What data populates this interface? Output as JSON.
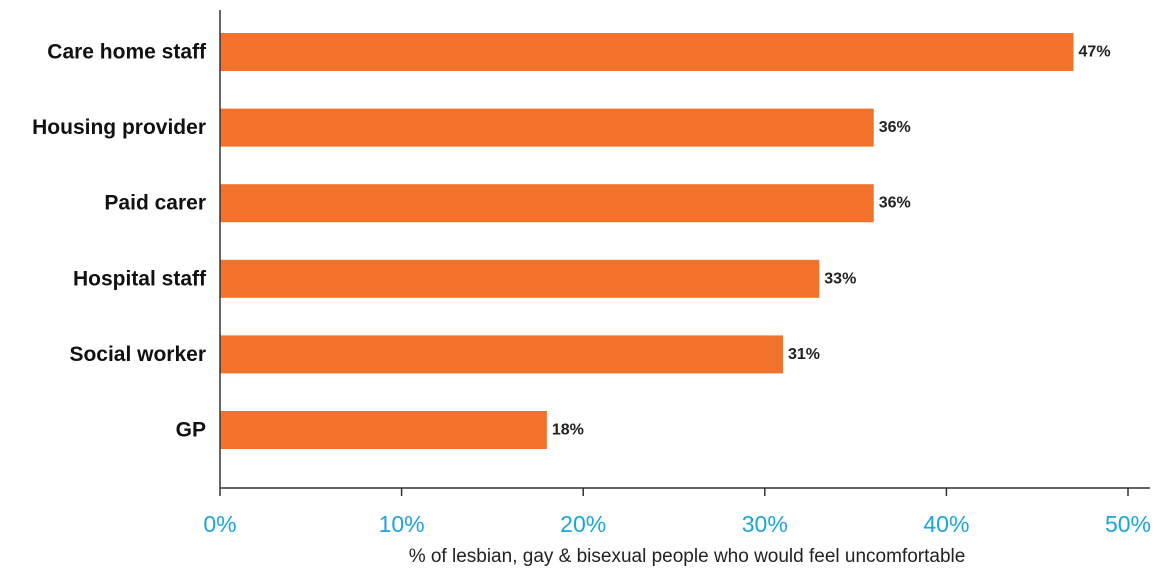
{
  "chart_data": {
    "type": "bar",
    "orientation": "horizontal",
    "categories": [
      "Care home staff",
      "Housing provider",
      "Paid carer",
      "Hospital staff",
      "Social worker",
      "GP"
    ],
    "values": [
      47,
      36,
      36,
      33,
      31,
      18
    ],
    "value_labels": [
      "47%",
      "36%",
      "36%",
      "33%",
      "31%",
      "18%"
    ],
    "xlabel": "% of lesbian, gay & bisexual people who would feel uncomfortable",
    "ylabel": "",
    "xlim": [
      0,
      50
    ],
    "x_ticks": [
      0,
      10,
      20,
      30,
      40,
      50
    ],
    "x_tick_labels": [
      "0%",
      "10%",
      "20%",
      "30%",
      "40%",
      "50%"
    ],
    "grid": false,
    "legend": "none"
  },
  "colors": {
    "bar": "#f2722c",
    "tick_label": "#1aa6dc",
    "axis": "#333333"
  }
}
